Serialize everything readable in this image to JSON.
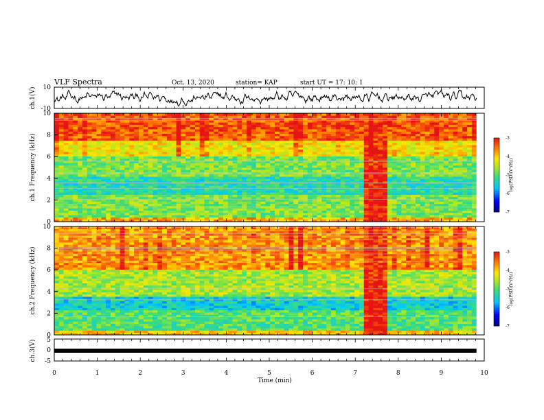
{
  "header": {
    "title": "VLF Spectra",
    "date": "Oct. 13, 2020",
    "station": "station= KAP",
    "start": "start UT = 17: 10: 1"
  },
  "chart_data": [
    {
      "type": "line",
      "panel": "ch1-waveform",
      "ylabel": "ch.1(V)",
      "yticks": [
        "10",
        "-10"
      ],
      "ylim": [
        -10,
        10
      ],
      "xlim": [
        0,
        9.82
      ],
      "series": [
        {
          "values": "noisy waveform, amplitude roughly -8 to +8 V, mean near 0"
        }
      ]
    },
    {
      "type": "heatmap",
      "panel": "ch1-spectrogram",
      "ylabel": "ch.1 Frequency (kHz)",
      "xlim": [
        0,
        9.82
      ],
      "ylim": [
        0,
        10
      ],
      "yticks": [
        "0",
        "2",
        "4",
        "6",
        "8",
        "10"
      ],
      "colorbar": {
        "range": [
          -7,
          -3
        ],
        "ticks": [
          "-3",
          "-4",
          "-5",
          "-6",
          "-7"
        ],
        "label": "log(PSD)(V²/Hz)"
      },
      "bands": [
        {
          "f": [
            0,
            0.5
          ],
          "level": -3.8
        },
        {
          "f": [
            0.5,
            2.5
          ],
          "level": -4.8
        },
        {
          "f": [
            2.5,
            4.2
          ],
          "level": -5.3
        },
        {
          "f": [
            4.2,
            6.0
          ],
          "level": -4.8
        },
        {
          "f": [
            6.0,
            7.5
          ],
          "level": -4.2
        },
        {
          "f": [
            7.5,
            10
          ],
          "level": -3.4
        }
      ],
      "events": [
        {
          "t": [
            7.2,
            7.8
          ],
          "level": -3.2
        }
      ]
    },
    {
      "type": "heatmap",
      "panel": "ch2-spectrogram",
      "ylabel": "ch.2 Frequency (kHz)",
      "xlim": [
        0,
        9.82
      ],
      "ylim": [
        0,
        10
      ],
      "yticks": [
        "0",
        "2",
        "4",
        "6",
        "8",
        "10"
      ],
      "colorbar": {
        "range": [
          -7,
          -3
        ],
        "ticks": [
          "-3",
          "-4",
          "-5",
          "-6",
          "-7"
        ],
        "label": "log(PSD)(V²/Hz)"
      },
      "bands": [
        {
          "f": [
            0,
            0.5
          ],
          "level": -4.0
        },
        {
          "f": [
            0.5,
            2.2
          ],
          "level": -5.0
        },
        {
          "f": [
            2.2,
            3.6
          ],
          "level": -5.5
        },
        {
          "f": [
            3.6,
            6.0
          ],
          "level": -4.6
        },
        {
          "f": [
            6.0,
            10
          ],
          "level": -3.7
        }
      ],
      "events": [
        {
          "t": [
            7.2,
            7.8
          ],
          "level": -3.2
        }
      ]
    },
    {
      "type": "line",
      "panel": "ch3-waveform",
      "ylabel": "ch.3(V)",
      "yticks": [
        "5",
        "0",
        "-5"
      ],
      "ylim": [
        -5,
        5
      ],
      "xlim": [
        0,
        9.82
      ],
      "series": [
        {
          "values": "flat trace near -0.2 V"
        }
      ]
    }
  ],
  "xaxis": {
    "label": "Time (min)",
    "ticks": [
      "0",
      "1",
      "2",
      "3",
      "4",
      "5",
      "6",
      "7",
      "8",
      "9",
      "10"
    ],
    "range": [
      0,
      10
    ]
  }
}
